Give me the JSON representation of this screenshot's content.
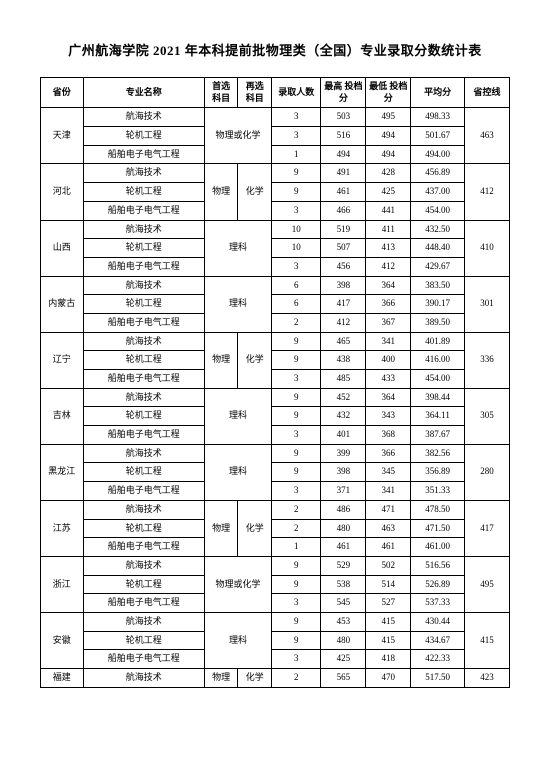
{
  "title": "广州航海学院 2021 年本科提前批物理类（全国）专业录取分数统计表",
  "headers": {
    "province": "省份",
    "major": "专业名称",
    "subject1": "首选\n科目",
    "subject2": "再选\n科目",
    "enrolled": "录取人数",
    "maxScore": "最高\n投档分",
    "minScore": "最低\n投档分",
    "avgScore": "平均分",
    "provLine": "省控线"
  },
  "groups": [
    {
      "province": "天津",
      "subject1": "物理或化学",
      "subject2": "",
      "sub2Merged": true,
      "provLine": "463",
      "rows": [
        {
          "major": "航海技术",
          "enrolled": "3",
          "max": "503",
          "min": "495",
          "avg": "498.33"
        },
        {
          "major": "轮机工程",
          "enrolled": "3",
          "max": "516",
          "min": "494",
          "avg": "501.67"
        },
        {
          "major": "船舶电子电气工程",
          "enrolled": "1",
          "max": "494",
          "min": "494",
          "avg": "494.00"
        }
      ]
    },
    {
      "province": "河北",
      "subject1": "物理",
      "subject2": "化学",
      "provLine": "412",
      "rows": [
        {
          "major": "航海技术",
          "enrolled": "9",
          "max": "491",
          "min": "428",
          "avg": "456.89"
        },
        {
          "major": "轮机工程",
          "enrolled": "9",
          "max": "461",
          "min": "425",
          "avg": "437.00"
        },
        {
          "major": "船舶电子电气工程",
          "enrolled": "3",
          "max": "466",
          "min": "441",
          "avg": "454.00"
        }
      ]
    },
    {
      "province": "山西",
      "subject1": "理科",
      "subject2": "",
      "sub2Merged": true,
      "provLine": "410",
      "rows": [
        {
          "major": "航海技术",
          "enrolled": "10",
          "max": "519",
          "min": "411",
          "avg": "432.50"
        },
        {
          "major": "轮机工程",
          "enrolled": "10",
          "max": "507",
          "min": "413",
          "avg": "448.40"
        },
        {
          "major": "船舶电子电气工程",
          "enrolled": "3",
          "max": "456",
          "min": "412",
          "avg": "429.67"
        }
      ]
    },
    {
      "province": "内蒙古",
      "subject1": "理科",
      "subject2": "",
      "sub2Merged": true,
      "provLine": "301",
      "rows": [
        {
          "major": "航海技术",
          "enrolled": "6",
          "max": "398",
          "min": "364",
          "avg": "383.50"
        },
        {
          "major": "轮机工程",
          "enrolled": "6",
          "max": "417",
          "min": "366",
          "avg": "390.17"
        },
        {
          "major": "船舶电子电气工程",
          "enrolled": "2",
          "max": "412",
          "min": "367",
          "avg": "389.50"
        }
      ]
    },
    {
      "province": "辽宁",
      "subject1": "物理",
      "subject2": "化学",
      "provLine": "336",
      "rows": [
        {
          "major": "航海技术",
          "enrolled": "9",
          "max": "465",
          "min": "341",
          "avg": "401.89"
        },
        {
          "major": "轮机工程",
          "enrolled": "9",
          "max": "438",
          "min": "400",
          "avg": "416.00"
        },
        {
          "major": "船舶电子电气工程",
          "enrolled": "3",
          "max": "485",
          "min": "433",
          "avg": "454.00"
        }
      ]
    },
    {
      "province": "吉林",
      "subject1": "理科",
      "subject2": "",
      "sub2Merged": true,
      "provLine": "305",
      "rows": [
        {
          "major": "航海技术",
          "enrolled": "9",
          "max": "452",
          "min": "364",
          "avg": "398.44"
        },
        {
          "major": "轮机工程",
          "enrolled": "9",
          "max": "432",
          "min": "343",
          "avg": "364.11"
        },
        {
          "major": "船舶电子电气工程",
          "enrolled": "3",
          "max": "401",
          "min": "368",
          "avg": "387.67"
        }
      ]
    },
    {
      "province": "黑龙江",
      "subject1": "理科",
      "subject2": "",
      "sub2Merged": true,
      "provLine": "280",
      "rows": [
        {
          "major": "航海技术",
          "enrolled": "9",
          "max": "399",
          "min": "366",
          "avg": "382.56"
        },
        {
          "major": "轮机工程",
          "enrolled": "9",
          "max": "398",
          "min": "345",
          "avg": "356.89"
        },
        {
          "major": "船舶电子电气工程",
          "enrolled": "3",
          "max": "371",
          "min": "341",
          "avg": "351.33"
        }
      ]
    },
    {
      "province": "江苏",
      "subject1": "物理",
      "subject2": "化学",
      "provLine": "417",
      "rows": [
        {
          "major": "航海技术",
          "enrolled": "2",
          "max": "486",
          "min": "471",
          "avg": "478.50"
        },
        {
          "major": "轮机工程",
          "enrolled": "2",
          "max": "480",
          "min": "463",
          "avg": "471.50"
        },
        {
          "major": "船舶电子电气工程",
          "enrolled": "1",
          "max": "461",
          "min": "461",
          "avg": "461.00"
        }
      ]
    },
    {
      "province": "浙江",
      "subject1": "物理或化学",
      "subject2": "",
      "sub2Merged": true,
      "provLine": "495",
      "rows": [
        {
          "major": "航海技术",
          "enrolled": "9",
          "max": "529",
          "min": "502",
          "avg": "516.56"
        },
        {
          "major": "轮机工程",
          "enrolled": "9",
          "max": "538",
          "min": "514",
          "avg": "526.89"
        },
        {
          "major": "船舶电子电气工程",
          "enrolled": "3",
          "max": "545",
          "min": "527",
          "avg": "537.33"
        }
      ]
    },
    {
      "province": "安徽",
      "subject1": "理科",
      "subject2": "",
      "sub2Merged": true,
      "provLine": "415",
      "rows": [
        {
          "major": "航海技术",
          "enrolled": "9",
          "max": "453",
          "min": "415",
          "avg": "430.44"
        },
        {
          "major": "轮机工程",
          "enrolled": "9",
          "max": "480",
          "min": "415",
          "avg": "434.67"
        },
        {
          "major": "船舶电子电气工程",
          "enrolled": "3",
          "max": "425",
          "min": "418",
          "avg": "422.33"
        }
      ]
    },
    {
      "province": "福建",
      "subject1": "物理",
      "subject2": "化学",
      "provLine": "423",
      "rows": [
        {
          "major": "航海技术",
          "enrolled": "2",
          "max": "565",
          "min": "470",
          "avg": "517.50"
        }
      ]
    }
  ],
  "style": {
    "background": "#ffffff",
    "textColor": "#000000",
    "borderColor": "#000000",
    "titleFontSize": 13,
    "cellFontSize": 9
  }
}
